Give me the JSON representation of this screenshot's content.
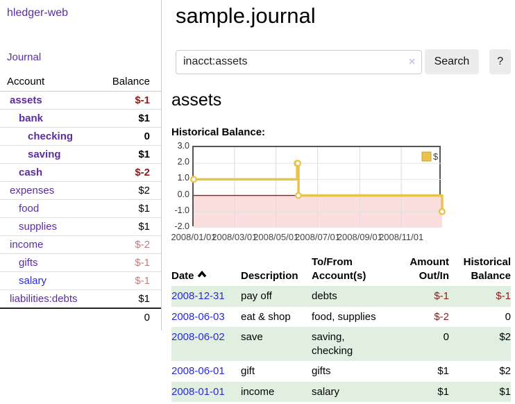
{
  "colors": {
    "accent_purple": "#5b2da0",
    "link_blue": "#2a2ad6",
    "negative_strong": "#8f1a1a",
    "negative_faint": "#bd7f7f",
    "row_shade_green": "#e1efe0",
    "chart_series_gold": "#e9c34a",
    "chart_negative_region": "#fbdfdf",
    "chart_zero_line": "#9e1212"
  },
  "sidebar": {
    "brand": "hledger-web",
    "journal_link": "Journal",
    "accounts_table": {
      "headers": [
        "Account",
        "Balance"
      ],
      "rows": [
        {
          "name": "assets",
          "balance": "$-1",
          "level": 1,
          "bold": true,
          "balance_class": "neg-strong",
          "link_class": "purple"
        },
        {
          "name": "bank",
          "balance": "$1",
          "level": 2,
          "bold": true,
          "balance_class": "",
          "link_class": "purple"
        },
        {
          "name": "checking",
          "balance": "0",
          "level": 3,
          "bold": true,
          "balance_class": "",
          "link_class": "purple"
        },
        {
          "name": "saving",
          "balance": "$1",
          "level": 3,
          "bold": true,
          "balance_class": "",
          "link_class": "purple"
        },
        {
          "name": "cash",
          "balance": "$-2",
          "level": 2,
          "bold": true,
          "balance_class": "neg-strong",
          "link_class": "purple"
        },
        {
          "name": "expenses",
          "balance": "$2",
          "level": 1,
          "bold": false,
          "balance_class": "",
          "link_class": "purple"
        },
        {
          "name": "food",
          "balance": "$1",
          "level": 2,
          "bold": false,
          "balance_class": "",
          "link_class": "purple"
        },
        {
          "name": "supplies",
          "balance": "$1",
          "level": 2,
          "bold": false,
          "balance_class": "",
          "link_class": "purple"
        },
        {
          "name": "income",
          "balance": "$-2",
          "level": 1,
          "bold": false,
          "balance_class": "neg-faint",
          "link_class": "purple"
        },
        {
          "name": "gifts",
          "balance": "$-1",
          "level": 2,
          "bold": false,
          "balance_class": "neg-faint",
          "link_class": "purple"
        },
        {
          "name": "salary",
          "balance": "$-1",
          "level": 2,
          "bold": false,
          "balance_class": "neg-faint",
          "link_class": "blue"
        },
        {
          "name": "liabilities:debts",
          "balance": "$1",
          "level": 1,
          "bold": false,
          "balance_class": "",
          "link_class": "purple"
        }
      ],
      "total": "0"
    }
  },
  "main": {
    "title": "sample.journal",
    "search": {
      "value": "inacct:assets",
      "clear_icon": "×",
      "button_label": "Search",
      "help_label": "?"
    },
    "account_heading": "assets",
    "chart_label": "Historical Balance:",
    "register": {
      "headers": [
        "Date",
        "Description",
        "To/From Account(s)",
        "Amount Out/In",
        "Historical Balance"
      ],
      "rows": [
        {
          "date": "2008-12-31",
          "description": "pay off",
          "accounts": "debts",
          "amount": "$-1",
          "amount_class": "neg",
          "balance": "$-1",
          "balance_class": "neg",
          "shaded": true
        },
        {
          "date": "2008-06-03",
          "description": "eat & shop",
          "accounts": "food, supplies",
          "amount": "$-2",
          "amount_class": "neg",
          "balance": "0",
          "balance_class": "",
          "shaded": false
        },
        {
          "date": "2008-06-02",
          "description": "save",
          "accounts": "saving, checking",
          "amount": "0",
          "amount_class": "",
          "balance": "$2",
          "balance_class": "",
          "shaded": true
        },
        {
          "date": "2008-06-01",
          "description": "gift",
          "accounts": "gifts",
          "amount": "$1",
          "amount_class": "",
          "balance": "$2",
          "balance_class": "",
          "shaded": false
        },
        {
          "date": "2008-01-01",
          "description": "income",
          "accounts": "salary",
          "amount": "$1",
          "amount_class": "",
          "balance": "$1",
          "balance_class": "",
          "shaded": true
        }
      ]
    }
  },
  "chart_data": {
    "type": "line",
    "title": "Historical Balance:",
    "step": true,
    "x_range": [
      "2008-01-01",
      "2008-12-31"
    ],
    "ylim": [
      -2,
      3
    ],
    "y_ticks": [
      3.0,
      2.0,
      1.0,
      0.0,
      -1.0,
      -2.0
    ],
    "x_ticks": [
      "2008/01/01",
      "2008/03/01",
      "2008/05/01",
      "2008/07/01",
      "2008/09/01",
      "2008/11/01"
    ],
    "series": [
      {
        "name": "$",
        "color": "#e9c34a",
        "points": [
          [
            "2008-01-01",
            1
          ],
          [
            "2008-06-01",
            2
          ],
          [
            "2008-06-02",
            2
          ],
          [
            "2008-06-03",
            0
          ],
          [
            "2008-12-31",
            -1
          ]
        ]
      }
    ],
    "legend_position": "top-right",
    "grid": true,
    "zero_line_color": "#9e1212",
    "negative_region_color": "#fbdfdf"
  }
}
